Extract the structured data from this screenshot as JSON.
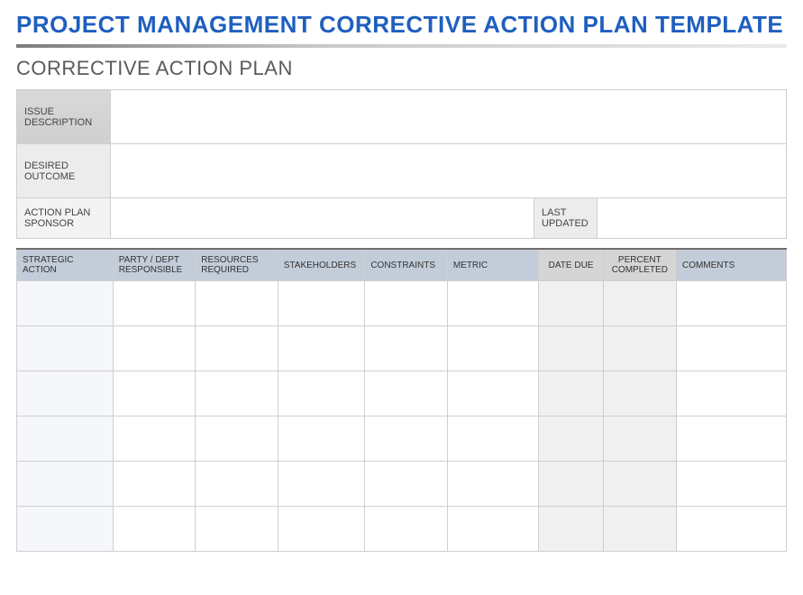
{
  "title": "PROJECT MANAGEMENT CORRECTIVE ACTION PLAN TEMPLATE",
  "section_title": "CORRECTIVE ACTION PLAN",
  "info": {
    "issue_label": "ISSUE DESCRIPTION",
    "issue_value": "",
    "desired_label": "DESIRED OUTCOME",
    "desired_value": "",
    "sponsor_label": "ACTION PLAN SPONSOR",
    "sponsor_value": "",
    "updated_label": "LAST UPDATED",
    "updated_value": ""
  },
  "grid": {
    "headers": {
      "strategic_action": "STRATEGIC ACTION",
      "party": "PARTY / DEPT RESPONSIBLE",
      "resources": "RESOURCES REQUIRED",
      "stakeholders": "STAKEHOLDERS",
      "constraints": "CONSTRAINTS",
      "metric": "METRIC",
      "date_due": "DATE DUE",
      "percent": "PERCENT COMPLETED",
      "comments": "COMMENTS"
    },
    "rows": [
      {
        "strategic_action": "",
        "party": "",
        "resources": "",
        "stakeholders": "",
        "constraints": "",
        "metric": "",
        "date_due": "",
        "percent": "",
        "comments": ""
      },
      {
        "strategic_action": "",
        "party": "",
        "resources": "",
        "stakeholders": "",
        "constraints": "",
        "metric": "",
        "date_due": "",
        "percent": "",
        "comments": ""
      },
      {
        "strategic_action": "",
        "party": "",
        "resources": "",
        "stakeholders": "",
        "constraints": "",
        "metric": "",
        "date_due": "",
        "percent": "",
        "comments": ""
      },
      {
        "strategic_action": "",
        "party": "",
        "resources": "",
        "stakeholders": "",
        "constraints": "",
        "metric": "",
        "date_due": "",
        "percent": "",
        "comments": ""
      },
      {
        "strategic_action": "",
        "party": "",
        "resources": "",
        "stakeholders": "",
        "constraints": "",
        "metric": "",
        "date_due": "",
        "percent": "",
        "comments": ""
      },
      {
        "strategic_action": "",
        "party": "",
        "resources": "",
        "stakeholders": "",
        "constraints": "",
        "metric": "",
        "date_due": "",
        "percent": "",
        "comments": ""
      }
    ]
  },
  "colors": {
    "title_color": "#1f5fbf",
    "header_bg": "#c3ccd9",
    "alt_header_bg": "#d5d5d5",
    "strategic_col_bg": "#f5f7fa",
    "gray_col_bg": "#f0f0f0",
    "border": "#cfcfcf"
  }
}
